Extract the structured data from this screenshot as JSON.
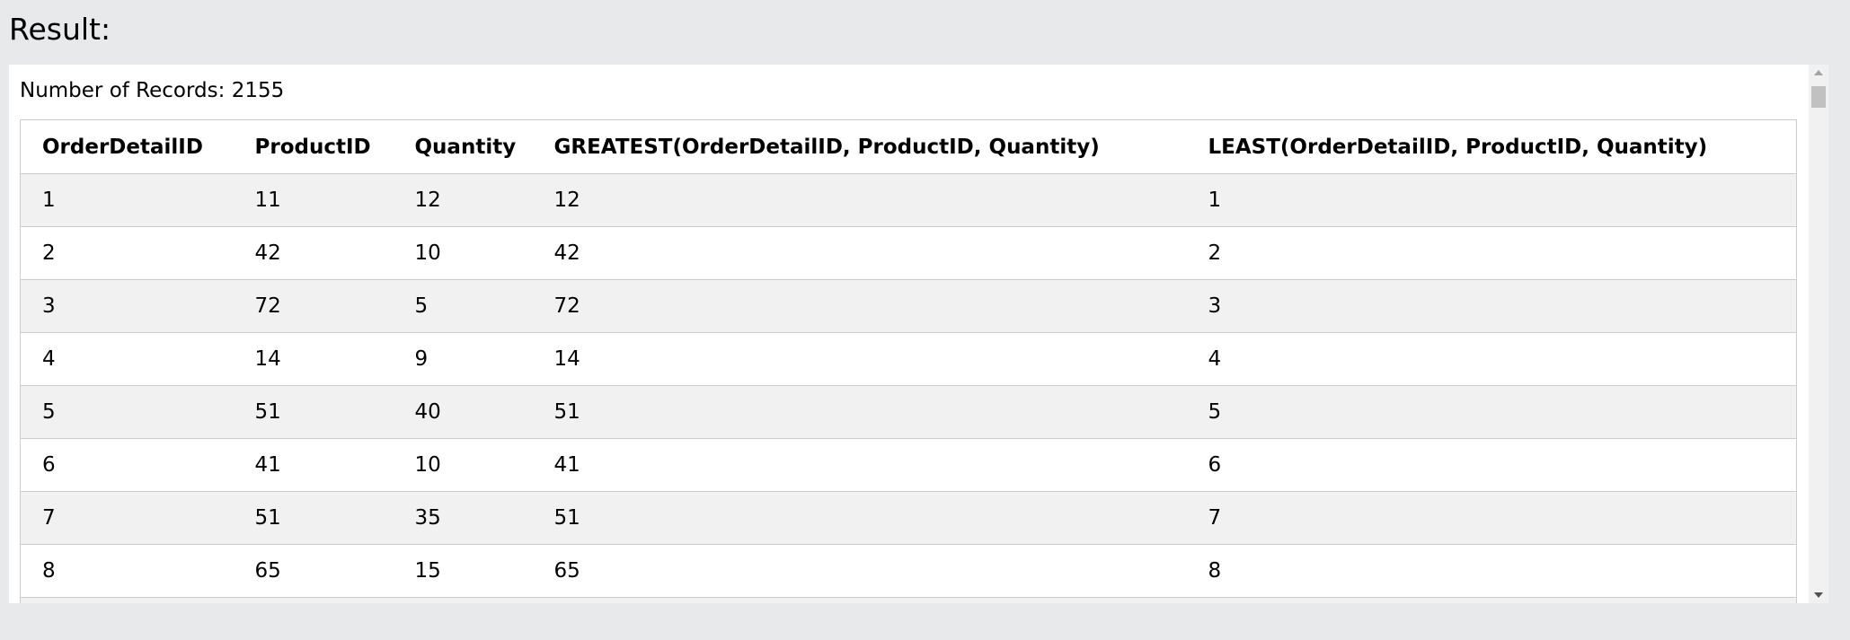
{
  "header": {
    "title": "Result:"
  },
  "records": "Number of Records: 2155",
  "table": {
    "columns": [
      "OrderDetailID",
      "ProductID",
      "Quantity",
      "GREATEST(OrderDetailID, ProductID, Quantity)",
      "LEAST(OrderDetailID, ProductID, Quantity)"
    ],
    "rows": [
      [
        1,
        11,
        12,
        12,
        1
      ],
      [
        2,
        42,
        10,
        42,
        2
      ],
      [
        3,
        72,
        5,
        72,
        3
      ],
      [
        4,
        14,
        9,
        14,
        4
      ],
      [
        5,
        51,
        40,
        51,
        5
      ],
      [
        6,
        41,
        10,
        41,
        6
      ],
      [
        7,
        51,
        35,
        51,
        7
      ],
      [
        8,
        65,
        15,
        65,
        8
      ]
    ]
  }
}
